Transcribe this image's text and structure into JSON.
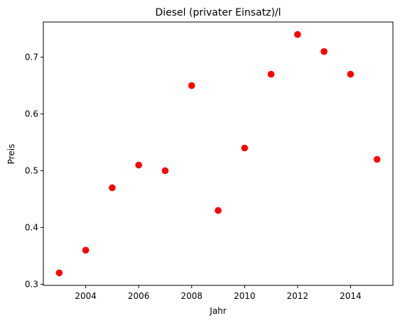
{
  "chart_data": {
    "type": "scatter",
    "title": "Diesel (privater Einsatz)/l",
    "xlabel": "Jahr",
    "ylabel": "Preis",
    "x": [
      2003,
      2004,
      2005,
      2006,
      2007,
      2008,
      2009,
      2010,
      2011,
      2012,
      2013,
      2014,
      2015
    ],
    "y": [
      0.32,
      0.36,
      0.47,
      0.51,
      0.5,
      0.65,
      0.43,
      0.54,
      0.67,
      0.74,
      0.71,
      0.67,
      0.52
    ],
    "xlim": [
      2002.4,
      2015.6
    ],
    "ylim": [
      0.298,
      0.762
    ],
    "xticks": [
      2004,
      2006,
      2008,
      2010,
      2012,
      2014
    ],
    "xtick_labels": [
      "2004",
      "2006",
      "2008",
      "2010",
      "2012",
      "2014"
    ],
    "yticks": [
      0.3,
      0.4,
      0.5,
      0.6,
      0.7
    ],
    "ytick_labels": [
      "0.3",
      "0.4",
      "0.5",
      "0.6",
      "0.7"
    ],
    "marker_color": "#ff0000",
    "grid": false
  }
}
